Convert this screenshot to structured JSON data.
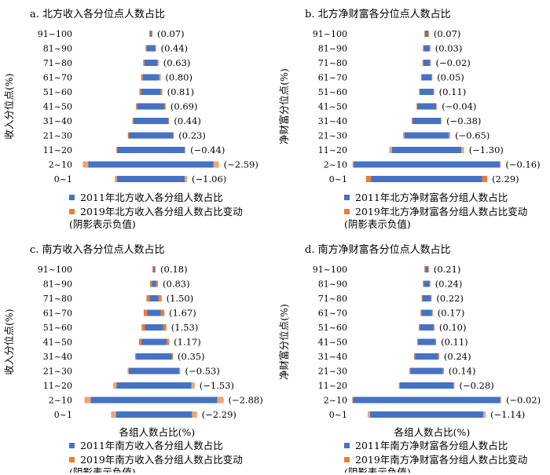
{
  "colors": {
    "base": "#4472C4",
    "change": "#ED7D31"
  },
  "chart_data": [
    {
      "type": "bar",
      "title": "a. 北方收入各分位点人数占比",
      "ylabel": "收入分位点(%)",
      "xlabel": "",
      "categories": [
        "91~100",
        "81~90",
        "71~80",
        "61~70",
        "51~60",
        "41~50",
        "31~40",
        "21~30",
        "11~20",
        "2~10",
        "0~1"
      ],
      "series": [
        {
          "name": "2011年北方收入各分组人数占比",
          "values": [
            0.3,
            2.0,
            3.0,
            3.8,
            4.6,
            6.3,
            8.2,
            10.4,
            15.9,
            29.5,
            16.0
          ]
        },
        {
          "name": "2019年北方收入各分组人数占比变动",
          "values": [
            0.07,
            0.44,
            0.63,
            0.8,
            0.81,
            0.69,
            0.44,
            0.23,
            -0.44,
            -2.59,
            -1.06
          ]
        }
      ],
      "labels": [
        "(0.07)",
        "(0.44)",
        "(0.63)",
        "(0.80)",
        "(0.81)",
        "(0.69)",
        "(0.44)",
        "(0.23)",
        "(−0.44)",
        "(−2.59)",
        "(−1.06)"
      ],
      "legend": [
        "2011年北方收入各分组人数占比",
        "2019年北方收入各分组人数占比变动",
        "(阴影表示负值)"
      ]
    },
    {
      "type": "bar",
      "title": "b. 北方净财富各分位点人数占比",
      "ylabel": "净财富分位点(%)",
      "xlabel": "",
      "categories": [
        "91~100",
        "81~90",
        "71~80",
        "61~70",
        "51~60",
        "41~50",
        "31~40",
        "21~30",
        "11~20",
        "2~10",
        "0~1"
      ],
      "series": [
        {
          "name": "2011年北方净财富各分组人数占比",
          "values": [
            0.6,
            1.3,
            1.6,
            2.2,
            3.1,
            4.4,
            6.6,
            10.4,
            16.2,
            34.2,
            26.0
          ]
        },
        {
          "name": "2019年北方净财富各分组人数占比变动",
          "values": [
            0.07,
            0.03,
            -0.02,
            0.05,
            0.11,
            -0.04,
            -0.38,
            -0.65,
            -1.3,
            -0.16,
            2.29
          ]
        }
      ],
      "labels": [
        "(0.07)",
        "(0.03)",
        "(−0.02)",
        "(0.05)",
        "(0.11)",
        "(−0.04)",
        "(−0.38)",
        "(−0.65)",
        "(−1.30)",
        "(−0.16)",
        "(2.29)"
      ],
      "legend": [
        "2011年北方净财富各分组人数占比",
        "2019年北方净财富各分组人数占比变动",
        "(阴影表示负值)"
      ]
    },
    {
      "type": "bar",
      "title": "c. 南方收入各分位点人数占比",
      "ylabel": "收入分位点(%)",
      "xlabel": "各组人数占比(%)",
      "categories": [
        "91~100",
        "81~90",
        "71~80",
        "61~70",
        "51~60",
        "41~50",
        "31~40",
        "21~30",
        "11~20",
        "2~10",
        "0~1"
      ],
      "series": [
        {
          "name": "2011年南方收入各分组人数占比",
          "values": [
            0.3,
            1.0,
            2.0,
            3.1,
            4.2,
            5.8,
            8.3,
            11.7,
            17.3,
            29.3,
            17.6
          ]
        },
        {
          "name": "2019年南方收入各分组人数占比变动",
          "values": [
            0.18,
            0.83,
            1.5,
            1.67,
            1.53,
            1.17,
            0.35,
            -0.53,
            -1.53,
            -2.88,
            -2.29
          ]
        }
      ],
      "labels": [
        "(0.18)",
        "(0.83)",
        "(1.50)",
        "(1.67)",
        "(1.53)",
        "(1.17)",
        "(0.35)",
        "(−0.53)",
        "(−1.53)",
        "(−2.88)",
        "(−2.29)"
      ],
      "legend": [
        "2011年南方收入各分组人数占比",
        "2019年南方收入各分组人数占比变动",
        "(阴影表示负值)"
      ]
    },
    {
      "type": "bar",
      "title": "d. 南方净财富各分位点人数占比",
      "ylabel": "净财富分位点(%)",
      "xlabel": "各组人数占比(%)",
      "categories": [
        "91~100",
        "81~90",
        "71~80",
        "61~70",
        "51~60",
        "41~50",
        "31~40",
        "21~30",
        "11~20",
        "2~10",
        "0~1"
      ],
      "series": [
        {
          "name": "2011年南方净财富各分组人数占比",
          "values": [
            0.6,
            1.3,
            1.9,
            2.4,
            3.2,
            4.0,
            5.4,
            7.6,
            12.6,
            34.4,
            26.4
          ]
        },
        {
          "name": "2019年南方净财富各分组人数占比变动",
          "values": [
            0.21,
            0.24,
            0.22,
            0.17,
            0.1,
            0.11,
            0.24,
            0.14,
            -0.28,
            -0.02,
            -1.14
          ]
        }
      ],
      "labels": [
        "(0.21)",
        "(0.24)",
        "(0.22)",
        "(0.17)",
        "(0.10)",
        "(0.11)",
        "(0.24)",
        "(0.14)",
        "(−0.28)",
        "(−0.02)",
        "(−1.14)"
      ],
      "legend": [
        "2011年南方净财富各分组人数占比",
        "2019年南方净财富各分组人数占比变动",
        "(阴影表示负值)"
      ]
    }
  ]
}
